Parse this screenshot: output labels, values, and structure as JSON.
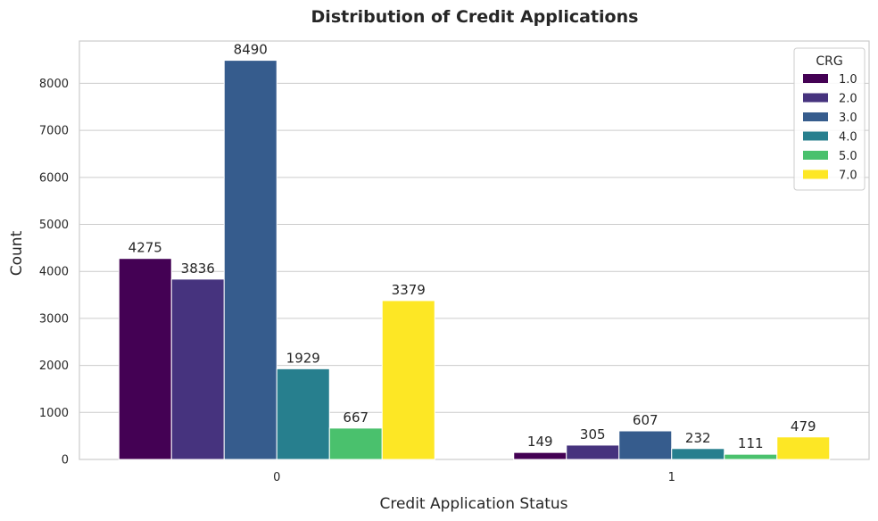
{
  "chart_data": {
    "type": "bar",
    "title": "Distribution of Credit Applications",
    "xlabel": "Credit Application Status",
    "ylabel": "Count",
    "categories": [
      "0",
      "1"
    ],
    "ylim": [
      0,
      8900
    ],
    "yticks": [
      0,
      1000,
      2000,
      3000,
      4000,
      5000,
      6000,
      7000,
      8000
    ],
    "grid": true,
    "legend": {
      "title": "CRG",
      "placement": "top-right"
    },
    "series": [
      {
        "name": "1.0",
        "color": "#440154",
        "values": [
          4275,
          149
        ]
      },
      {
        "name": "2.0",
        "color": "#46337e",
        "values": [
          3836,
          305
        ]
      },
      {
        "name": "3.0",
        "color": "#365c8d",
        "values": [
          8490,
          607
        ]
      },
      {
        "name": "4.0",
        "color": "#277f8e",
        "values": [
          1929,
          232
        ]
      },
      {
        "name": "5.0",
        "color": "#4ac16d",
        "values": [
          667,
          111
        ]
      },
      {
        "name": "7.0",
        "color": "#fde725",
        "values": [
          3379,
          479
        ]
      }
    ]
  }
}
